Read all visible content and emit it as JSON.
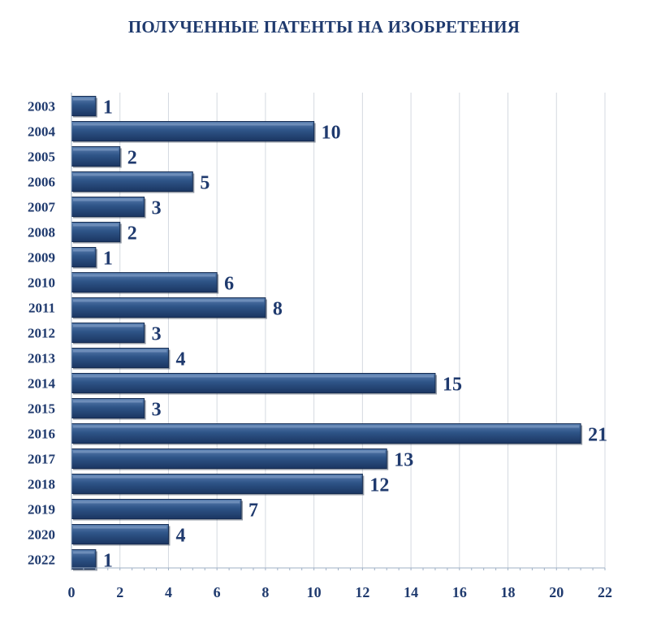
{
  "chart_data": {
    "type": "bar",
    "orientation": "horizontal",
    "title": "ПОЛУЧЕННЫЕ ПАТЕНТЫ НА ИЗОБРЕТЕНИЯ",
    "categories": [
      "2003",
      "2004",
      "2005",
      "2006",
      "2007",
      "2008",
      "2009",
      "2010",
      "2011",
      "2012",
      "2013",
      "2014",
      "2015",
      "2016",
      "2017",
      "2018",
      "2019",
      "2020",
      "2022"
    ],
    "values": [
      1,
      10,
      2,
      5,
      3,
      2,
      1,
      6,
      8,
      3,
      4,
      15,
      3,
      21,
      13,
      12,
      7,
      4,
      1
    ],
    "xlim": [
      0,
      22
    ],
    "xticks": [
      0,
      2,
      4,
      6,
      8,
      10,
      12,
      14,
      16,
      18,
      20,
      22
    ],
    "grid": true,
    "data_labels": true,
    "bar_color": "#2b4f80",
    "text_color": "#1f3a6e"
  }
}
